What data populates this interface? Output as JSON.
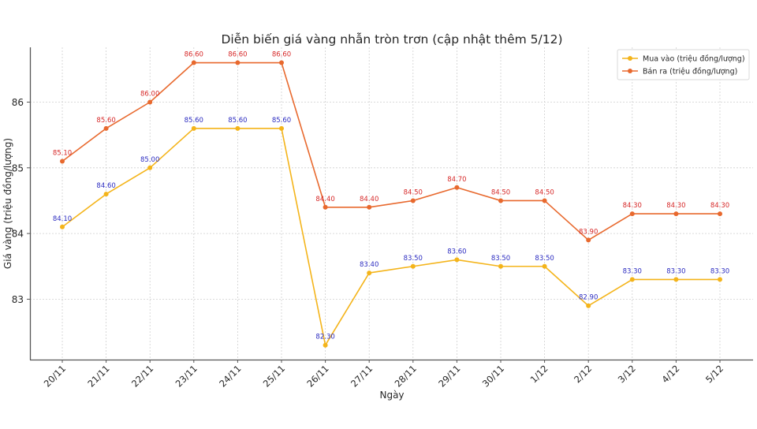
{
  "chart_data": {
    "type": "line",
    "title": "Diễn biến giá vàng nhẫn tròn trơn (cập nhật thêm 5/12)",
    "xlabel": "Ngày",
    "ylabel": "Giá vàng (triệu đồng/lượng)",
    "categories": [
      "20/11",
      "21/11",
      "22/11",
      "23/11",
      "24/11",
      "25/11",
      "26/11",
      "27/11",
      "28/11",
      "29/11",
      "30/11",
      "1/12",
      "2/12",
      "3/12",
      "4/12",
      "5/12"
    ],
    "series": [
      {
        "name": "Mua vào (triệu đồng/lượng)",
        "color": "#f4b41a",
        "label_color": "#2b2bc0",
        "values": [
          84.1,
          84.6,
          85.0,
          85.6,
          85.6,
          85.6,
          82.3,
          83.4,
          83.5,
          83.6,
          83.5,
          83.5,
          82.9,
          83.3,
          83.3,
          83.3
        ]
      },
      {
        "name": "Bán ra (triệu đồng/lượng)",
        "color": "#e8692e",
        "label_color": "#d62828",
        "values": [
          85.1,
          85.6,
          86.0,
          86.6,
          86.6,
          86.6,
          84.4,
          84.4,
          84.5,
          84.7,
          84.5,
          84.5,
          83.9,
          84.3,
          84.3,
          84.3
        ]
      }
    ],
    "yticks": [
      83,
      84,
      85,
      86
    ],
    "ylim": [
      82.1,
      86.75
    ],
    "grid": true,
    "legend_position": "upper right",
    "data_label_format": "2 decimals"
  }
}
